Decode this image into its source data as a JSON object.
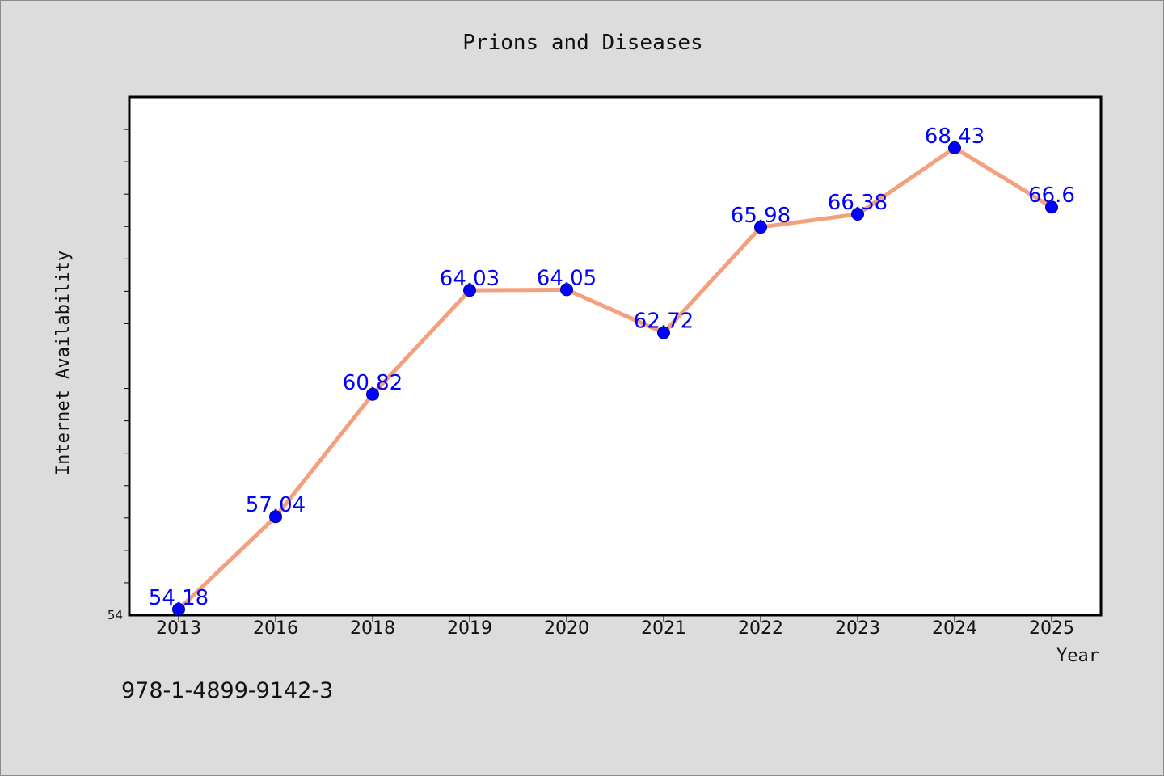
{
  "chart_data": {
    "type": "line",
    "title": "Prions and Diseases",
    "xlabel": "Year",
    "ylabel": "Internet Availability",
    "categories": [
      "2013",
      "2016",
      "2018",
      "2019",
      "2020",
      "2021",
      "2022",
      "2023",
      "2024",
      "2025"
    ],
    "series": [
      {
        "values": [
          54.18,
          57.04,
          60.82,
          64.03,
          64.05,
          62.72,
          65.98,
          66.38,
          68.43,
          66.6
        ],
        "data_labels": [
          "54.18",
          "57.04",
          "60.82",
          "64.03",
          "64.05",
          "62.72",
          "65.98",
          "66.38",
          "68.43",
          "66.6"
        ],
        "line_color": "#f4a07e",
        "marker_color": "#0000ff"
      }
    ],
    "ylim": [
      54,
      70
    ],
    "yticks_labeled": [
      "54"
    ],
    "grid": false,
    "legend": "none"
  },
  "footer": {
    "isbn": "978-1-4899-9142-3"
  },
  "colors": {
    "background": "#dcdcdc",
    "plot_background": "#ffffff",
    "line": "#f4a07e",
    "marker": "#0000ff",
    "data_label": "#0000ff"
  }
}
